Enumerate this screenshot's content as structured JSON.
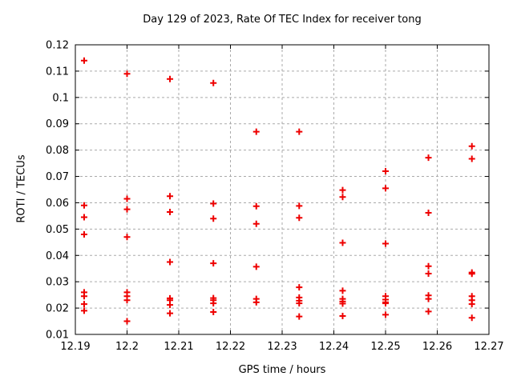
{
  "chart_data": {
    "type": "scatter",
    "title": "Day 129 of 2023, Rate Of TEC Index for receiver tong",
    "xlabel": "GPS time / hours",
    "ylabel": "ROTI / TECUs",
    "xlim": [
      12.19,
      12.27
    ],
    "ylim": [
      0.01,
      0.12
    ],
    "xtick_values": [
      12.19,
      12.2,
      12.21,
      12.22,
      12.23,
      12.24,
      12.25,
      12.26,
      12.27
    ],
    "xtick_labels": [
      "12.19",
      "12.2",
      "12.21",
      "12.22",
      "12.23",
      "12.24",
      "12.25",
      "12.26",
      "12.27"
    ],
    "ytick_values": [
      0.01,
      0.02,
      0.03,
      0.04,
      0.05,
      0.06,
      0.07,
      0.08,
      0.09,
      0.1,
      0.11,
      0.12
    ],
    "ytick_labels": [
      "0.01",
      "0.02",
      "0.03",
      "0.04",
      "0.05",
      "0.06",
      "0.07",
      "0.08",
      "0.09",
      "0.1",
      "0.11",
      "0.12"
    ],
    "grid": true,
    "legend": "none",
    "marker": "plus",
    "colors": {
      "marker": "#ee0000",
      "grid": "#aaaaaa",
      "axis": "#000000",
      "background": "#ffffff"
    },
    "series": [
      {
        "name": "ROTI",
        "points": [
          [
            12.1917,
            0.114
          ],
          [
            12.1917,
            0.059
          ],
          [
            12.1917,
            0.0545
          ],
          [
            12.1917,
            0.048
          ],
          [
            12.1917,
            0.026
          ],
          [
            12.1917,
            0.0245
          ],
          [
            12.1917,
            0.0215
          ],
          [
            12.1917,
            0.019
          ],
          [
            12.2,
            0.109
          ],
          [
            12.2,
            0.0615
          ],
          [
            12.2,
            0.0575
          ],
          [
            12.2,
            0.047
          ],
          [
            12.2,
            0.026
          ],
          [
            12.2,
            0.0245
          ],
          [
            12.2,
            0.023
          ],
          [
            12.2,
            0.015
          ],
          [
            12.2083,
            0.107
          ],
          [
            12.2083,
            0.0625
          ],
          [
            12.2083,
            0.0565
          ],
          [
            12.2083,
            0.0375
          ],
          [
            12.2083,
            0.0237
          ],
          [
            12.2083,
            0.023
          ],
          [
            12.2083,
            0.0212
          ],
          [
            12.2083,
            0.018
          ],
          [
            12.2167,
            0.1055
          ],
          [
            12.2167,
            0.0597
          ],
          [
            12.2167,
            0.054
          ],
          [
            12.2167,
            0.037
          ],
          [
            12.2167,
            0.0238
          ],
          [
            12.2167,
            0.023
          ],
          [
            12.2167,
            0.0218
          ],
          [
            12.2167,
            0.0185
          ],
          [
            12.225,
            0.087
          ],
          [
            12.225,
            0.0587
          ],
          [
            12.225,
            0.052
          ],
          [
            12.225,
            0.0357
          ],
          [
            12.225,
            0.0235
          ],
          [
            12.225,
            0.0222
          ],
          [
            12.2333,
            0.087
          ],
          [
            12.2333,
            0.0588
          ],
          [
            12.2333,
            0.0543
          ],
          [
            12.2333,
            0.0279
          ],
          [
            12.2333,
            0.024
          ],
          [
            12.2333,
            0.0228
          ],
          [
            12.2333,
            0.0218
          ],
          [
            12.2333,
            0.0168
          ],
          [
            12.2417,
            0.0648
          ],
          [
            12.2417,
            0.0622
          ],
          [
            12.2417,
            0.0448
          ],
          [
            12.2417,
            0.0266
          ],
          [
            12.2417,
            0.0235
          ],
          [
            12.2417,
            0.0225
          ],
          [
            12.2417,
            0.0217
          ],
          [
            12.2417,
            0.017
          ],
          [
            12.25,
            0.072
          ],
          [
            12.25,
            0.0655
          ],
          [
            12.25,
            0.0445
          ],
          [
            12.25,
            0.0245
          ],
          [
            12.25,
            0.0232
          ],
          [
            12.25,
            0.0222
          ],
          [
            12.25,
            0.0218
          ],
          [
            12.25,
            0.0175
          ],
          [
            12.2583,
            0.0771
          ],
          [
            12.2583,
            0.0562
          ],
          [
            12.2583,
            0.0359
          ],
          [
            12.2583,
            0.0331
          ],
          [
            12.2583,
            0.0248
          ],
          [
            12.2583,
            0.0235
          ],
          [
            12.2583,
            0.0187
          ],
          [
            12.2667,
            0.0815
          ],
          [
            12.2667,
            0.0767
          ],
          [
            12.2667,
            0.0335
          ],
          [
            12.2667,
            0.033
          ],
          [
            12.2667,
            0.0245
          ],
          [
            12.2667,
            0.023
          ],
          [
            12.2667,
            0.0215
          ],
          [
            12.2667,
            0.0163
          ]
        ]
      }
    ]
  }
}
